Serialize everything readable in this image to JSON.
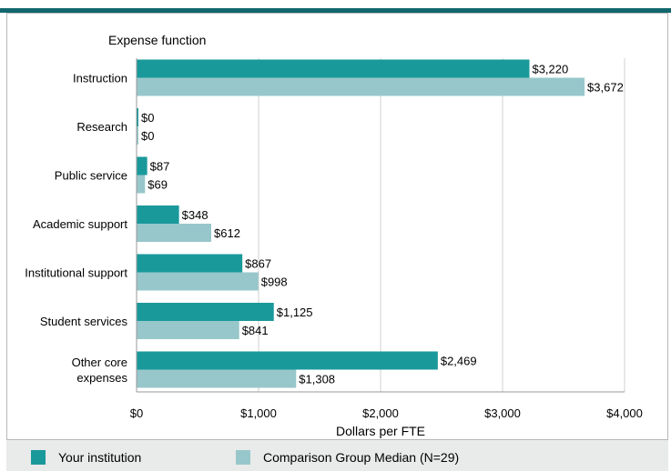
{
  "colors": {
    "primary": "#1a999b",
    "secondary": "#97c7cb",
    "rule": "#11676d",
    "grid": "#d0d0d0"
  },
  "chart_data": {
    "type": "bar",
    "orientation": "horizontal",
    "category_axis_title": "Expense function",
    "xlabel": "Dollars per FTE",
    "xlim": [
      0,
      4000
    ],
    "x_ticks": [
      0,
      1000,
      2000,
      3000,
      4000
    ],
    "x_tick_labels": [
      "$0",
      "$1,000",
      "$2,000",
      "$3,000",
      "$4,000"
    ],
    "grid": "vertical",
    "legend_position": "bottom",
    "categories": [
      [
        "Instruction"
      ],
      [
        "Research"
      ],
      [
        "Public service"
      ],
      [
        "Academic support"
      ],
      [
        "Institutional support"
      ],
      [
        "Student services"
      ],
      [
        "Other core",
        "expenses"
      ]
    ],
    "series": [
      {
        "name": "Your institution",
        "color": "#1a999b",
        "values": [
          3220,
          0,
          87,
          348,
          867,
          1125,
          2469
        ],
        "labels": [
          "$3,220",
          "$0",
          "$87",
          "$348",
          "$867",
          "$1,125",
          "$2,469"
        ]
      },
      {
        "name": "Comparison Group Median (N=29)",
        "color": "#97c7cb",
        "values": [
          3672,
          0,
          69,
          612,
          998,
          841,
          1308
        ],
        "labels": [
          "$3,672",
          "$0",
          "$69",
          "$612",
          "$998",
          "$841",
          "$1,308"
        ]
      }
    ]
  }
}
